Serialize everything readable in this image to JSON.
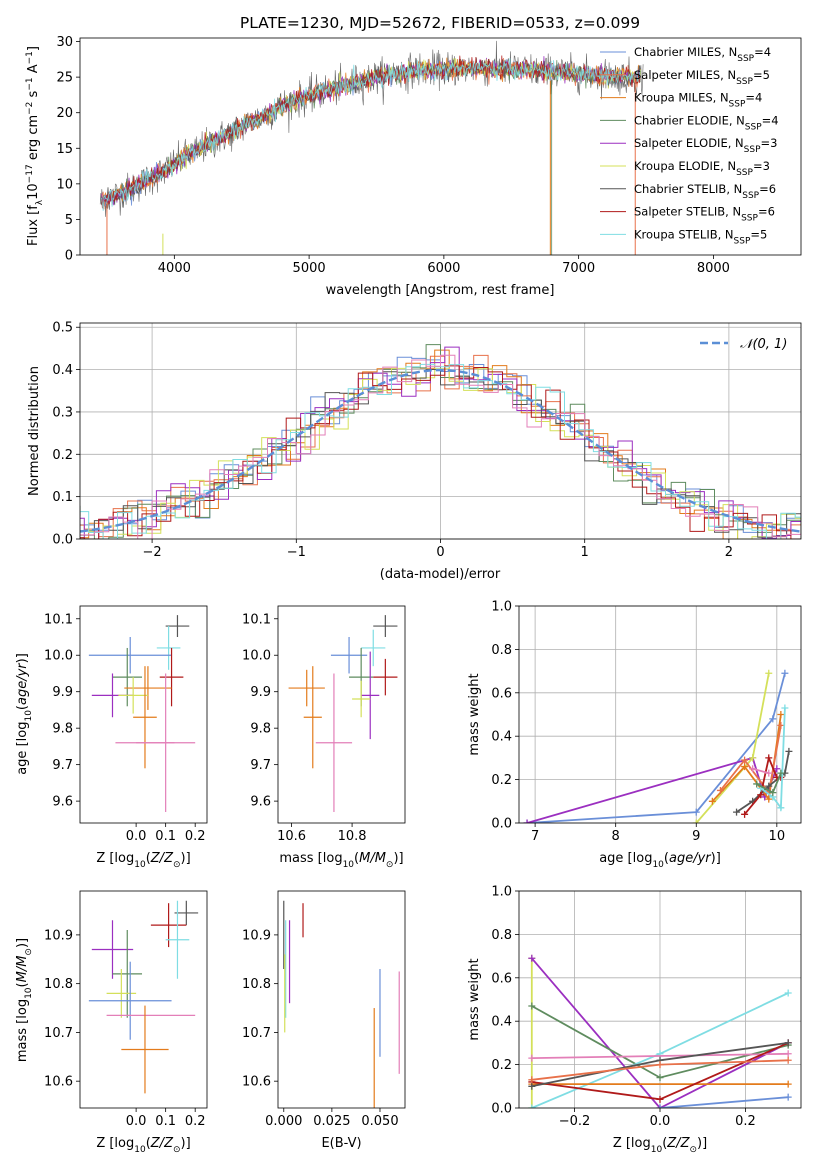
{
  "colors": {
    "chabrier_miles": "#6a8fd8",
    "salpeter_miles": "#e8714a",
    "kroupa_miles": "#e37b1c",
    "chabrier_elodie": "#5f8c5f",
    "salpeter_elodie": "#9b2fc0",
    "kroupa_elodie": "#d4e05a",
    "chabrier_stelib": "#555555",
    "salpeter_stelib": "#b01a1a",
    "kroupa_stelib": "#7fdde3",
    "pink": "#e37fb8",
    "gaussian": "#5b8fd6",
    "grid": "#b0b0b0"
  },
  "chart_data": [
    {
      "id": "spectrum",
      "type": "line",
      "title": "PLATE=1230, MJD=52672, FIBERID=0533, z=0.099",
      "xlabel": "wavelength [Angstrom, rest frame]",
      "ylabel_parts": [
        "Flux [f",
        "λ",
        "10",
        "−17",
        " erg cm",
        "−2",
        " s",
        "−1",
        " A",
        "−1",
        "]"
      ],
      "xlim": [
        3300,
        8650
      ],
      "ylim": [
        0,
        30.5
      ],
      "xticks": [
        4000,
        5000,
        6000,
        7000,
        8000
      ],
      "yticks": [
        0,
        5,
        10,
        15,
        20,
        25,
        30
      ],
      "grid": false,
      "legend_position": "top-right",
      "continuum": [
        [
          3450,
          7.5
        ],
        [
          3700,
          9.5
        ],
        [
          3900,
          11.5
        ],
        [
          4100,
          14
        ],
        [
          4300,
          16
        ],
        [
          4500,
          18
        ],
        [
          4800,
          21
        ],
        [
          5100,
          23
        ],
        [
          5500,
          25
        ],
        [
          5800,
          26
        ],
        [
          6200,
          26.3
        ],
        [
          6600,
          26
        ],
        [
          7000,
          25.5
        ],
        [
          7400,
          25
        ],
        [
          7500,
          25
        ]
      ],
      "legend": [
        {
          "label": "Chabrier MILES, N",
          "sub": "SSP",
          "suffix": "=4",
          "color_key": "chabrier_miles"
        },
        {
          "label": "Salpeter MILES, N",
          "sub": "SSP",
          "suffix": "=5",
          "color_key": "salpeter_miles"
        },
        {
          "label": "Kroupa MILES, N",
          "sub": "SSP",
          "suffix": "=4",
          "color_key": "kroupa_miles"
        },
        {
          "label": "Chabrier ELODIE, N",
          "sub": "SSP",
          "suffix": "=4",
          "color_key": "chabrier_elodie"
        },
        {
          "label": "Salpeter ELODIE, N",
          "sub": "SSP",
          "suffix": "=3",
          "color_key": "salpeter_elodie"
        },
        {
          "label": "Kroupa ELODIE, N",
          "sub": "SSP",
          "suffix": "=3",
          "color_key": "kroupa_elodie"
        },
        {
          "label": "Chabrier STELIB, N",
          "sub": "SSP",
          "suffix": "=6",
          "color_key": "chabrier_stelib"
        },
        {
          "label": "Salpeter STELIB, N",
          "sub": "SSP",
          "suffix": "=6",
          "color_key": "salpeter_stelib"
        },
        {
          "label": "Kroupa STELIB, N",
          "sub": "SSP",
          "suffix": "=5",
          "color_key": "kroupa_stelib"
        }
      ]
    },
    {
      "id": "residuals",
      "type": "histogram",
      "xlabel": "(data-model)/error",
      "ylabel": "Normed distribution",
      "xlim": [
        -2.5,
        2.5
      ],
      "ylim": [
        0,
        0.51
      ],
      "xticks": [
        -2,
        -1,
        0,
        1,
        2
      ],
      "yticks": [
        0.0,
        0.1,
        0.2,
        0.3,
        0.4,
        0.5
      ],
      "grid": true,
      "legend_position": "top-right",
      "legend_label": "𝒩(0, 1)",
      "gaussian": {
        "mean": 0,
        "sigma": 1
      }
    },
    {
      "id": "age_vs_z",
      "type": "scatter",
      "xlabel": "Z [log10(Z/Z⊙)]",
      "ylabel": "age  [log10(age/yr)]",
      "xlim": [
        -0.19,
        0.24
      ],
      "ylim": [
        9.54,
        10.135
      ],
      "xticks": [
        0.0,
        0.1,
        0.2
      ],
      "yticks": [
        9.6,
        9.7,
        9.8,
        9.9,
        10.0,
        10.1
      ],
      "grid": false,
      "points": [
        {
          "x": 0.14,
          "y": 10.08,
          "xerr": 0.04,
          "yerr": 0.03,
          "color_key": "chabrier_stelib"
        },
        {
          "x": 0.11,
          "y": 10.02,
          "xerr": 0.04,
          "yerr": 0.06,
          "color_key": "kroupa_stelib"
        },
        {
          "x": -0.02,
          "y": 10.0,
          "xerr": 0.14,
          "yerr": 0.05,
          "color_key": "chabrier_miles"
        },
        {
          "x": -0.03,
          "y": 9.94,
          "xerr": 0.05,
          "yerr": 0.08,
          "color_key": "chabrier_elodie"
        },
        {
          "x": 0.12,
          "y": 9.94,
          "xerr": 0.04,
          "yerr": 0.08,
          "color_key": "salpeter_stelib"
        },
        {
          "x": 0.04,
          "y": 9.91,
          "xerr": 0.08,
          "yerr": 0.06,
          "color_key": "kroupa_miles"
        },
        {
          "x": -0.08,
          "y": 9.89,
          "xerr": 0.07,
          "yerr": 0.06,
          "color_key": "salpeter_elodie"
        },
        {
          "x": -0.01,
          "y": 9.89,
          "xerr": 0.05,
          "yerr": 0.05,
          "color_key": "kroupa_elodie"
        },
        {
          "x": 0.03,
          "y": 9.83,
          "xerr": 0.04,
          "yerr": 0.14,
          "color_key": "kroupa_miles"
        },
        {
          "x": 0.1,
          "y": 9.76,
          "xerr": 0.1,
          "yerr": 0.19,
          "color_key": "pink"
        },
        {
          "x": 0.03,
          "y": 9.76,
          "xerr": 0.1,
          "yerr": 0.0,
          "color_key": "pink"
        }
      ]
    },
    {
      "id": "age_vs_mass",
      "type": "scatter",
      "xlabel": "mass [log10(M/M⊙)]",
      "ylabel": "",
      "xlim": [
        10.555,
        10.975
      ],
      "ylim": [
        9.54,
        10.135
      ],
      "xticks": [
        10.6,
        10.8
      ],
      "yticks": [
        9.6,
        9.7,
        9.8,
        9.9,
        10.0,
        10.1
      ],
      "grid": false,
      "points": [
        {
          "x": 10.91,
          "y": 10.08,
          "xerr": 0.04,
          "yerr": 0.03,
          "color_key": "chabrier_stelib"
        },
        {
          "x": 10.87,
          "y": 10.02,
          "xerr": 0.04,
          "yerr": 0.05,
          "color_key": "kroupa_stelib"
        },
        {
          "x": 10.79,
          "y": 10.0,
          "xerr": 0.06,
          "yerr": 0.05,
          "color_key": "chabrier_miles"
        },
        {
          "x": 10.83,
          "y": 9.94,
          "xerr": 0.04,
          "yerr": 0.08,
          "color_key": "chabrier_elodie"
        },
        {
          "x": 10.91,
          "y": 9.94,
          "xerr": 0.04,
          "yerr": 0.05,
          "color_key": "salpeter_stelib"
        },
        {
          "x": 10.65,
          "y": 9.91,
          "xerr": 0.06,
          "yerr": 0.05,
          "color_key": "kroupa_miles"
        },
        {
          "x": 10.86,
          "y": 9.89,
          "xerr": 0.03,
          "yerr": 0.12,
          "color_key": "salpeter_elodie"
        },
        {
          "x": 10.83,
          "y": 9.88,
          "xerr": 0.03,
          "yerr": 0.05,
          "color_key": "kroupa_elodie"
        },
        {
          "x": 10.67,
          "y": 9.83,
          "xerr": 0.03,
          "yerr": 0.14,
          "color_key": "kroupa_miles"
        },
        {
          "x": 10.74,
          "y": 9.76,
          "xerr": 0.06,
          "yerr": 0.19,
          "color_key": "pink"
        }
      ]
    },
    {
      "id": "massweight_vs_age",
      "type": "line",
      "xlabel": "age  [log10(age/yr)]",
      "ylabel": "mass weight",
      "xlim": [
        6.8,
        10.3
      ],
      "ylim": [
        0,
        1.0
      ],
      "xticks": [
        7,
        8,
        9,
        10
      ],
      "yticks": [
        0.0,
        0.2,
        0.4,
        0.6,
        0.8,
        1.0
      ],
      "grid": true,
      "series": [
        {
          "color_key": "chabrier_miles",
          "points": [
            [
              6.9,
              0.0
            ],
            [
              9.0,
              0.05
            ],
            [
              9.95,
              0.48
            ],
            [
              10.1,
              0.69
            ]
          ]
        },
        {
          "color_key": "salpeter_elodie",
          "points": [
            [
              6.9,
              0.0
            ],
            [
              9.7,
              0.3
            ],
            [
              9.85,
              0.12
            ],
            [
              10.0,
              0.25
            ]
          ]
        },
        {
          "color_key": "kroupa_elodie",
          "points": [
            [
              9.0,
              0.0
            ],
            [
              9.7,
              0.3
            ],
            [
              9.9,
              0.69
            ]
          ]
        },
        {
          "color_key": "kroupa_miles",
          "points": [
            [
              9.2,
              0.1
            ],
            [
              9.6,
              0.26
            ],
            [
              9.9,
              0.11
            ],
            [
              10.05,
              0.5
            ]
          ]
        },
        {
          "color_key": "salpeter_miles",
          "points": [
            [
              9.3,
              0.15
            ],
            [
              9.6,
              0.29
            ],
            [
              9.9,
              0.14
            ],
            [
              10.05,
              0.45
            ]
          ]
        },
        {
          "color_key": "chabrier_stelib",
          "points": [
            [
              9.5,
              0.05
            ],
            [
              9.7,
              0.1
            ],
            [
              9.9,
              0.17
            ],
            [
              10.1,
              0.23
            ],
            [
              10.15,
              0.33
            ]
          ]
        },
        {
          "color_key": "salpeter_stelib",
          "points": [
            [
              9.6,
              0.04
            ],
            [
              9.8,
              0.13
            ],
            [
              9.9,
              0.3
            ],
            [
              10.0,
              0.21
            ],
            [
              10.05,
              0.21
            ]
          ]
        },
        {
          "color_key": "kroupa_stelib",
          "points": [
            [
              9.8,
              0.16
            ],
            [
              9.95,
              0.12
            ],
            [
              10.05,
              0.07
            ],
            [
              10.1,
              0.53
            ]
          ]
        },
        {
          "color_key": "chabrier_elodie",
          "points": [
            [
              9.75,
              0.18
            ],
            [
              9.95,
              0.14
            ],
            [
              10.05,
              0.23
            ]
          ]
        },
        {
          "color_key": "pink",
          "points": [
            [
              9.7,
              0.25
            ],
            [
              9.9,
              0.23
            ]
          ]
        }
      ]
    },
    {
      "id": "mass_vs_z",
      "type": "scatter",
      "xlabel": "Z [log10(Z/Z⊙)]",
      "ylabel": "mass [log10(M/M⊙)]",
      "xlim": [
        -0.19,
        0.24
      ],
      "ylim": [
        10.545,
        10.99
      ],
      "xticks": [
        0.0,
        0.1,
        0.2
      ],
      "yticks": [
        10.6,
        10.7,
        10.8,
        10.9
      ],
      "grid": false,
      "points": [
        {
          "x": 0.17,
          "y": 10.945,
          "xerr": 0.04,
          "yerr": 0.025,
          "color_key": "chabrier_stelib"
        },
        {
          "x": 0.11,
          "y": 10.92,
          "xerr": 0.06,
          "yerr": 0.045,
          "color_key": "salpeter_stelib"
        },
        {
          "x": 0.14,
          "y": 10.89,
          "xerr": 0.04,
          "yerr": 0.08,
          "color_key": "kroupa_stelib"
        },
        {
          "x": -0.08,
          "y": 10.87,
          "xerr": 0.07,
          "yerr": 0.06,
          "color_key": "salpeter_elodie"
        },
        {
          "x": -0.03,
          "y": 10.82,
          "xerr": 0.05,
          "yerr": 0.09,
          "color_key": "chabrier_elodie"
        },
        {
          "x": -0.05,
          "y": 10.78,
          "xerr": 0.05,
          "yerr": 0.05,
          "color_key": "kroupa_elodie"
        },
        {
          "x": -0.02,
          "y": 10.765,
          "xerr": 0.14,
          "yerr": 0.08,
          "color_key": "chabrier_miles"
        },
        {
          "x": 0.05,
          "y": 10.735,
          "xerr": 0.15,
          "yerr": 0.0,
          "color_key": "pink"
        },
        {
          "x": 0.03,
          "y": 10.665,
          "xerr": 0.08,
          "yerr": 0.09,
          "color_key": "kroupa_miles"
        }
      ]
    },
    {
      "id": "mass_vs_ebv",
      "type": "scatter",
      "xlabel": "E(B-V)",
      "ylabel": "",
      "xlim": [
        -0.003,
        0.063
      ],
      "ylim": [
        10.545,
        10.99
      ],
      "xticks": [
        0.0,
        0.025,
        0.05
      ],
      "xtick_labels": [
        "0.000",
        "0.025",
        "0.050"
      ],
      "yticks": [
        10.6,
        10.7,
        10.8,
        10.9
      ],
      "grid": false,
      "points": [
        {
          "x": 0.0,
          "y": 10.9,
          "xerr": 0.0,
          "yerr": 0.07,
          "color_key": "chabrier_stelib"
        },
        {
          "x": 0.001,
          "y": 10.83,
          "xerr": 0.0,
          "yerr": 0.1,
          "color_key": "kroupa_stelib"
        },
        {
          "x": 0.0005,
          "y": 10.78,
          "xerr": 0.0,
          "yerr": 0.08,
          "color_key": "kroupa_elodie"
        },
        {
          "x": 0.003,
          "y": 10.845,
          "xerr": 0.0,
          "yerr": 0.085,
          "color_key": "salpeter_elodie"
        },
        {
          "x": 0.01,
          "y": 10.93,
          "xerr": 0.0,
          "yerr": 0.035,
          "color_key": "salpeter_stelib"
        },
        {
          "x": 0.05,
          "y": 10.74,
          "xerr": 0.0,
          "yerr": 0.09,
          "color_key": "chabrier_miles"
        },
        {
          "x": 0.047,
          "y": 10.63,
          "xerr": 0.0,
          "yerr": 0.12,
          "color_key": "kroupa_miles"
        },
        {
          "x": 0.06,
          "y": 10.72,
          "xerr": 0.0,
          "yerr": 0.105,
          "color_key": "pink"
        }
      ]
    },
    {
      "id": "massweight_vs_z",
      "type": "line",
      "xlabel": "Z [log10(Z/Z⊙)]",
      "ylabel": "mass weight",
      "xlim": [
        -0.33,
        0.33
      ],
      "ylim": [
        0,
        1.0
      ],
      "xticks": [
        -0.2,
        0.0,
        0.2
      ],
      "yticks": [
        0.0,
        0.2,
        0.4,
        0.6,
        0.8,
        1.0
      ],
      "grid": true,
      "series": [
        {
          "color_key": "kroupa_elodie",
          "points": [
            [
              -0.3,
              0.69
            ],
            [
              -0.3,
              0.0
            ]
          ]
        },
        {
          "color_key": "salpeter_elodie",
          "points": [
            [
              -0.3,
              0.69
            ],
            [
              0.0,
              0.0
            ],
            [
              0.3,
              0.3
            ]
          ]
        },
        {
          "color_key": "chabrier_elodie",
          "points": [
            [
              -0.3,
              0.47
            ],
            [
              0.0,
              0.14
            ],
            [
              0.3,
              0.29
            ]
          ]
        },
        {
          "color_key": "kroupa_stelib",
          "points": [
            [
              -0.3,
              0.0
            ],
            [
              0.0,
              0.25
            ],
            [
              0.3,
              0.53
            ]
          ]
        },
        {
          "color_key": "pink",
          "points": [
            [
              -0.3,
              0.23
            ],
            [
              0.3,
              0.25
            ]
          ]
        },
        {
          "color_key": "chabrier_miles",
          "points": [
            [
              0.0,
              0.0
            ],
            [
              0.3,
              0.05
            ]
          ]
        },
        {
          "color_key": "kroupa_miles",
          "points": [
            [
              -0.3,
              0.11
            ],
            [
              0.3,
              0.11
            ]
          ]
        },
        {
          "color_key": "salpeter_stelib",
          "points": [
            [
              -0.3,
              0.12
            ],
            [
              0.0,
              0.04
            ],
            [
              0.3,
              0.3
            ]
          ]
        },
        {
          "color_key": "chabrier_stelib",
          "points": [
            [
              -0.3,
              0.1
            ],
            [
              0.0,
              0.22
            ],
            [
              0.3,
              0.3
            ]
          ]
        },
        {
          "color_key": "salpeter_miles",
          "points": [
            [
              -0.3,
              0.13
            ],
            [
              0.0,
              0.2
            ],
            [
              0.3,
              0.22
            ]
          ]
        }
      ]
    }
  ]
}
